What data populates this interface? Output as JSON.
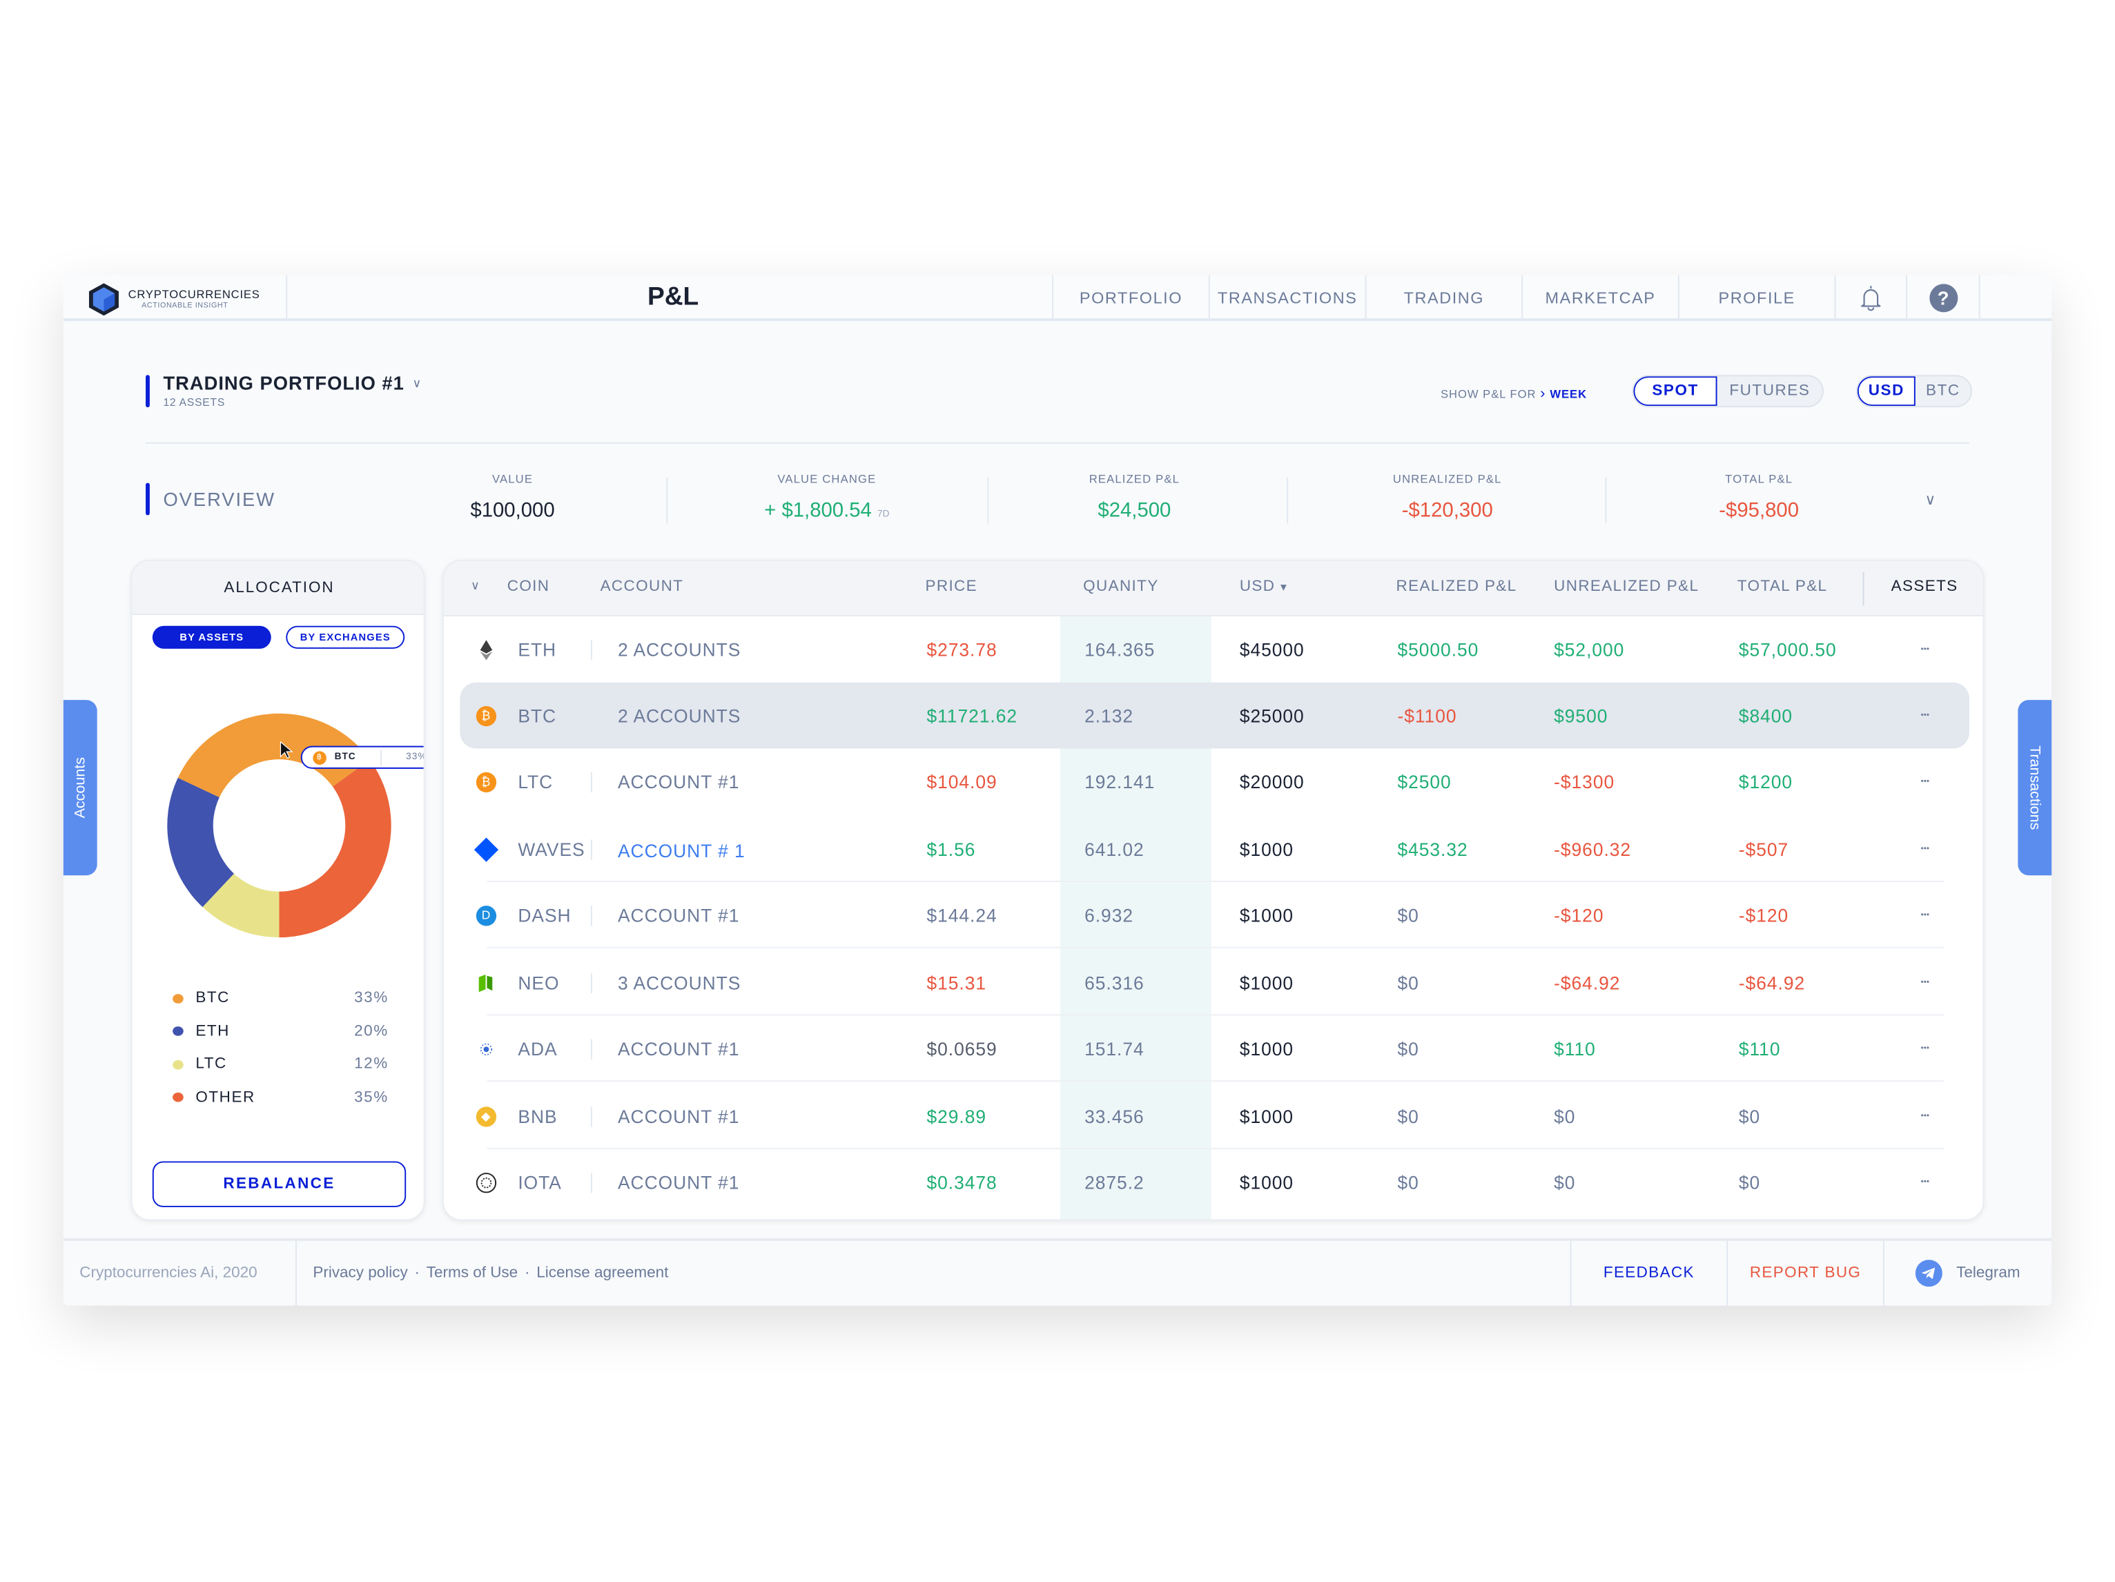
{
  "brand": {
    "name": "CRYPTOCURRENCIES",
    "tagline": "ACTIONABLE INSIGHT"
  },
  "header": {
    "title": "P&L",
    "nav": [
      "PORTFOLIO",
      "TRANSACTIONS",
      "TRADING",
      "MARKETCAP",
      "PROFILE"
    ],
    "icons": [
      "bell-icon",
      "help-icon",
      "moon-icon"
    ]
  },
  "portfolio": {
    "title": "TRADING PORTFOLIO #1",
    "subtitle": "12 ASSETS",
    "show_label": "SHOW P&L FOR",
    "period": "WEEK",
    "market_toggle": [
      "SPOT",
      "FUTURES"
    ],
    "currency_toggle": [
      "USD",
      "BTC"
    ]
  },
  "overview": {
    "title": "OVERVIEW",
    "value_label": "VALUE",
    "value": "$100,000",
    "change_label": "VALUE CHANGE",
    "change": "+ $1,800.54",
    "change_period": "7D",
    "realized_label": "REALIZED P&L",
    "realized": "$24,500",
    "unrealized_label": "UNREALIZED P&L",
    "unrealized": "-$120,300",
    "total_label": "TOTAL P&L",
    "total": "-$95,800"
  },
  "allocation": {
    "title": "ALLOCATION",
    "tabs": [
      "BY ASSETS",
      "BY EXCHANGES"
    ],
    "rebalance": "REBALANCE",
    "tooltip": {
      "coin": "BTC",
      "pct": "33%"
    },
    "chart_data": {
      "type": "pie",
      "title": "ALLOCATION",
      "categories": [
        "BTC",
        "ETH",
        "LTC",
        "OTHER"
      ],
      "values": [
        33,
        20,
        12,
        35
      ],
      "labels": [
        "33%",
        "20%",
        "12%",
        "35%"
      ],
      "colors": [
        "#f19c38",
        "#4053ae",
        "#e8e38a",
        "#ec643a"
      ]
    }
  },
  "side": {
    "left": "Accounts",
    "right": "Transactions"
  },
  "table": {
    "headers": [
      "COIN",
      "ACCOUNT",
      "PRICE",
      "QUANITY",
      "USD",
      "REALIZED P&L",
      "UNREALIZED P&L",
      "TOTAL P&L",
      "ASSETS"
    ],
    "sort_indicator": "▾",
    "rows": [
      {
        "coin": "ETH",
        "account": "2 ACCOUNTS",
        "price": "$273.78",
        "pc": "red",
        "qty": "164.365",
        "usd": "$45000",
        "realized": "$5000.50",
        "rc": "green",
        "unrealized": "$52,000",
        "uc": "green",
        "total": "$57,000.50",
        "tc": "green",
        "icon": "#3c3c3d"
      },
      {
        "coin": "BTC",
        "account": "2 ACCOUNTS",
        "price": "$11721.62",
        "pc": "green",
        "qty": "2.132",
        "usd": "$25000",
        "realized": "-$1100",
        "rc": "red",
        "unrealized": "$9500",
        "uc": "green",
        "total": "$8400",
        "tc": "green",
        "icon": "#f7931a"
      },
      {
        "coin": "LTC",
        "account": "ACCOUNT #1",
        "price": "$104.09",
        "pc": "red",
        "qty": "192.141",
        "usd": "$20000",
        "realized": "$2500",
        "rc": "green",
        "unrealized": "-$1300",
        "uc": "red",
        "total": "$1200",
        "tc": "green",
        "icon": "#f7931a"
      },
      {
        "coin": "WAVES",
        "account": "ACCOUNT # 1",
        "price": "$1.56",
        "pc": "green",
        "qty": "641.02",
        "usd": "$1000",
        "realized": "$453.32",
        "rc": "green",
        "unrealized": "-$960.32",
        "uc": "red",
        "total": "-$507",
        "tc": "red",
        "icon": "#0055ff"
      },
      {
        "coin": "DASH",
        "account": "ACCOUNT #1",
        "price": "$144.24",
        "pc": "gray",
        "qty": "6.932",
        "usd": "$1000",
        "realized": "$0",
        "rc": "gray",
        "unrealized": "-$120",
        "uc": "red",
        "total": "-$120",
        "tc": "red",
        "icon": "#1c8de0"
      },
      {
        "coin": "NEO",
        "account": "3 ACCOUNTS",
        "price": "$15.31",
        "pc": "red",
        "qty": "65.316",
        "usd": "$1000",
        "realized": "$0",
        "rc": "gray",
        "unrealized": "-$64.92",
        "uc": "red",
        "total": "-$64.92",
        "tc": "red",
        "icon": "#58bf00"
      },
      {
        "coin": "ADA",
        "account": "ACCOUNT #1",
        "price": "$0.0659",
        "pc": "mid",
        "qty": "151.74",
        "usd": "$1000",
        "realized": "$0",
        "rc": "gray",
        "unrealized": "$110",
        "uc": "green",
        "total": "$110",
        "tc": "green",
        "icon": "#3468d1"
      },
      {
        "coin": "BNB",
        "account": "ACCOUNT #1",
        "price": "$29.89",
        "pc": "green",
        "qty": "33.456",
        "usd": "$1000",
        "realized": "$0",
        "rc": "gray",
        "unrealized": "$0",
        "uc": "gray",
        "total": "$0",
        "tc": "gray",
        "icon": "#f3ba2f"
      },
      {
        "coin": "IOTA",
        "account": "ACCOUNT #1",
        "price": "$0.3478",
        "pc": "green",
        "qty": "2875.2",
        "usd": "$1000",
        "realized": "$0",
        "rc": "gray",
        "unrealized": "$0",
        "uc": "gray",
        "total": "$0",
        "tc": "gray",
        "icon": "#242424"
      }
    ]
  },
  "footer": {
    "copyright": "Cryptocurrencies Ai, 2020",
    "links": [
      "Privacy policy",
      "Terms of Use",
      "License agreement"
    ],
    "feedback": "FEEDBACK",
    "report": "REPORT BUG",
    "telegram": "Telegram"
  },
  "colors": {
    "accent": "#0a1fd6",
    "green": "#1fae74",
    "red": "#e8553e",
    "side_tab": "#5b8def"
  }
}
